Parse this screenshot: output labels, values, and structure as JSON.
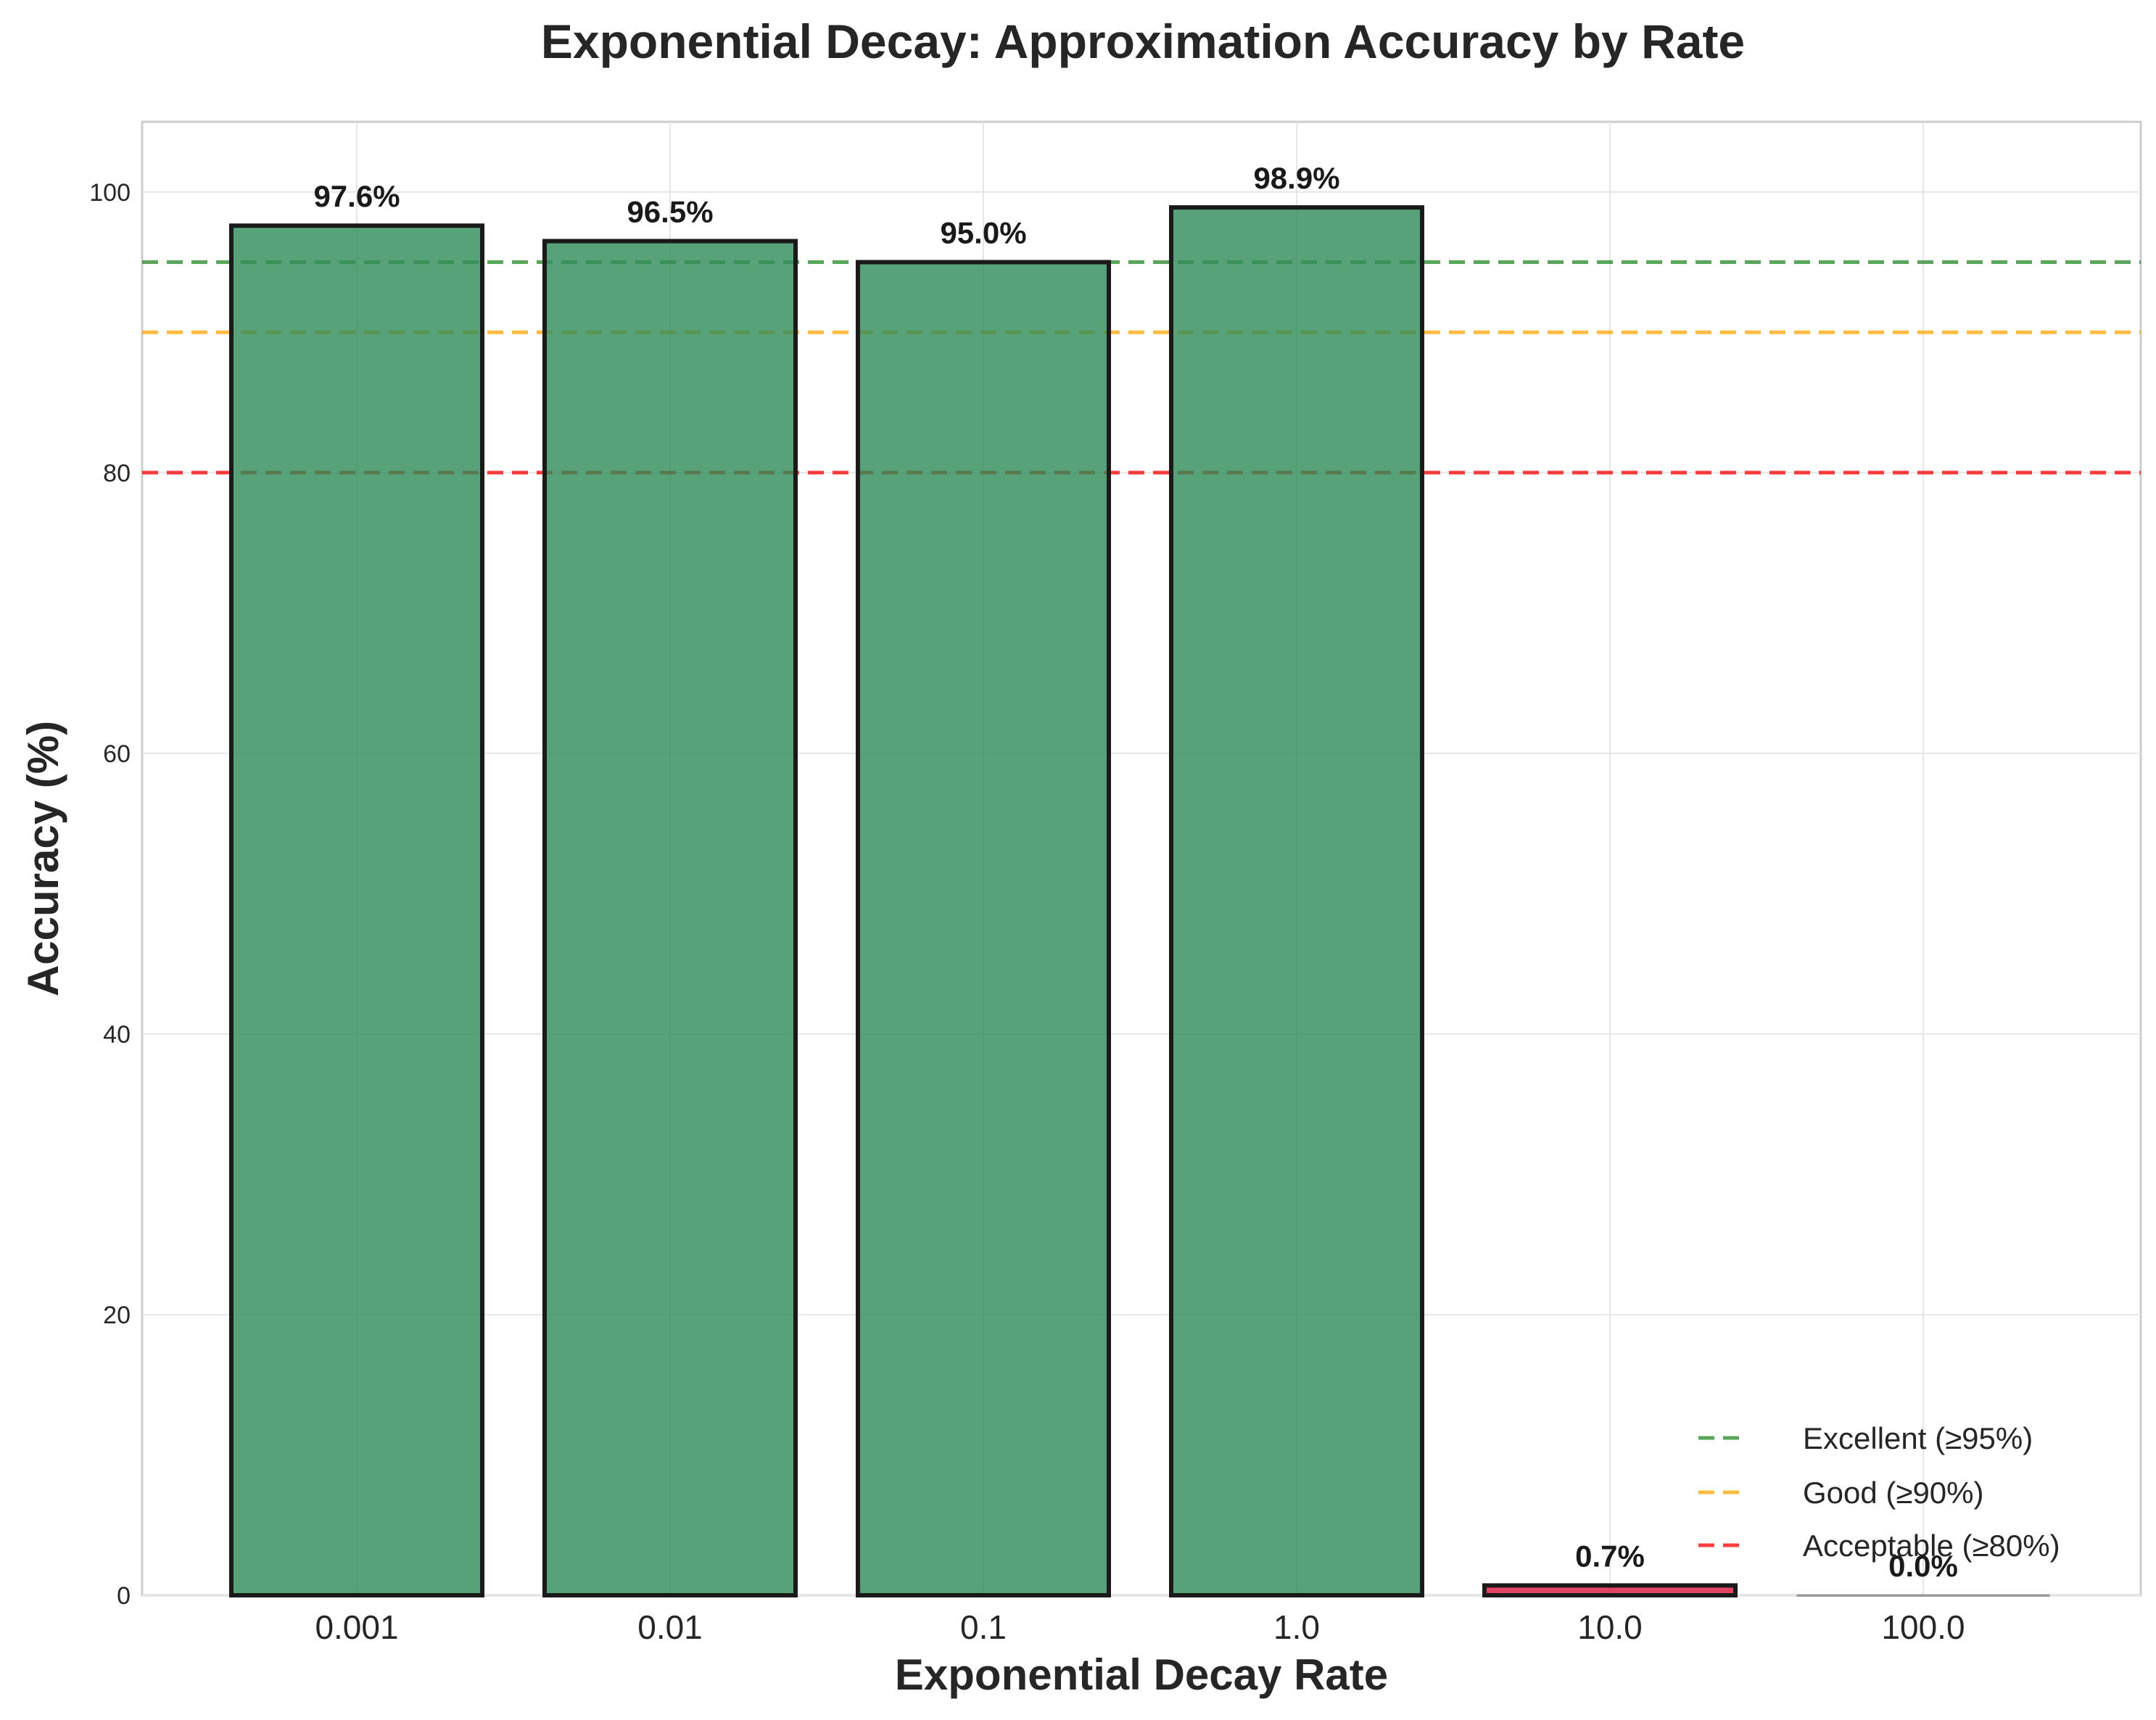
{
  "chart_data": {
    "type": "bar",
    "title": "Exponential Decay: Approximation Accuracy by Rate",
    "xlabel": "Exponential Decay Rate",
    "ylabel": "Accuracy (%)",
    "categories": [
      "0.001",
      "0.01",
      "0.1",
      "1.0",
      "10.0",
      "100.0"
    ],
    "values": [
      97.6,
      96.5,
      95.0,
      98.9,
      0.7,
      0.0
    ],
    "data_labels": [
      "97.6%",
      "96.5%",
      "95.0%",
      "98.9%",
      "0.7%",
      "0.0%"
    ],
    "bar_colors": [
      "#2e8b57",
      "#2e8b57",
      "#2e8b57",
      "#2e8b57",
      "#dc143c",
      "#dc143c"
    ],
    "ylim": [
      0,
      105
    ],
    "yticks": [
      0,
      20,
      40,
      60,
      80,
      100
    ],
    "grid": true,
    "reference_lines": [
      {
        "name": "Excellent (≥95%)",
        "value": 95,
        "color": "#228b22"
      },
      {
        "name": "Good (≥90%)",
        "value": 90,
        "color": "#ffa500"
      },
      {
        "name": "Acceptable (≥80%)",
        "value": 80,
        "color": "#ff0000"
      }
    ],
    "legend_position": "lower-right"
  }
}
